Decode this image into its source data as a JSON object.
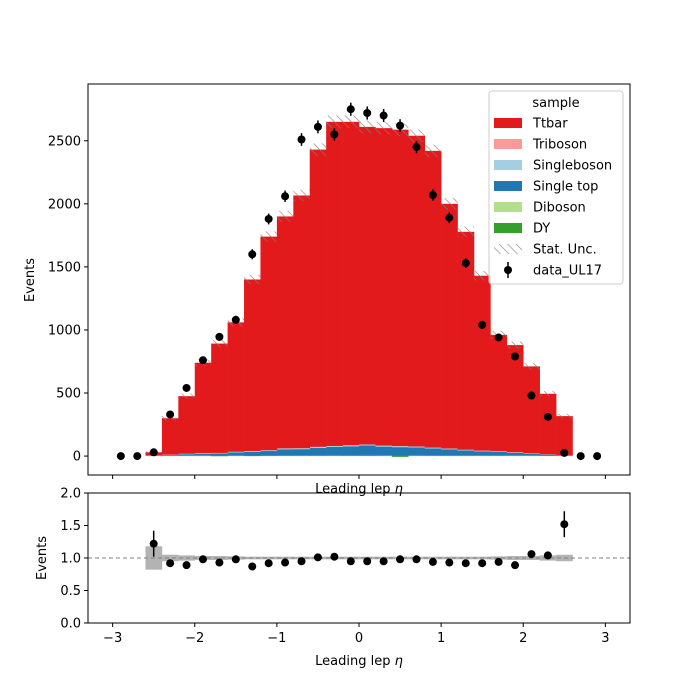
{
  "chart_data": [
    {
      "type": "bar",
      "stacked": true,
      "xlabel": "Leading lep $\\eta$",
      "ylabel": "Events",
      "xlim": [
        -3.3,
        3.3
      ],
      "ylim": [
        -150,
        2950
      ],
      "yticks": [
        0,
        500,
        1000,
        1500,
        2000,
        2500
      ],
      "xticks": [
        -3,
        -2,
        -1,
        0,
        1,
        2,
        3
      ],
      "bin_edges": [
        -2.6,
        -2.4,
        -2.2,
        -2.0,
        -1.8,
        -1.6,
        -1.4,
        -1.2,
        -1.0,
        -0.8,
        -0.6,
        -0.4,
        -0.2,
        0.0,
        0.2,
        0.4,
        0.6,
        0.8,
        1.0,
        1.2,
        1.4,
        1.6,
        1.8,
        2.0,
        2.2,
        2.4,
        2.6
      ],
      "legend": {
        "title": "sample",
        "placement": "top-right",
        "entries": [
          "Ttbar",
          "Triboson",
          "Singleboson",
          "Single top",
          "Diboson",
          "DY",
          "Stat. Unc.",
          "data_UL17"
        ]
      },
      "series": [
        {
          "name": "DY",
          "color": "#33a02c",
          "values": [
            2,
            3,
            4,
            3,
            -2,
            3,
            -1,
            1,
            5,
            2,
            4,
            6,
            5,
            8,
            6,
            -8,
            6,
            4,
            5,
            3,
            2,
            4,
            3,
            2,
            2,
            1
          ]
        },
        {
          "name": "Diboson",
          "color": "#b2df8a",
          "values": [
            0,
            1,
            1,
            1,
            1,
            1,
            1,
            1,
            1,
            1,
            1,
            1,
            1,
            1,
            1,
            1,
            1,
            1,
            1,
            1,
            1,
            1,
            1,
            1,
            0,
            0
          ]
        },
        {
          "name": "Single top",
          "color": "#1f78b4",
          "values": [
            3,
            5,
            10,
            15,
            20,
            25,
            32,
            38,
            48,
            52,
            60,
            65,
            72,
            75,
            68,
            70,
            62,
            55,
            48,
            40,
            35,
            30,
            22,
            15,
            10,
            5
          ]
        },
        {
          "name": "Singleboson",
          "color": "#a6cee3",
          "values": [
            1,
            2,
            3,
            4,
            4,
            5,
            6,
            6,
            7,
            7,
            8,
            8,
            8,
            8,
            8,
            8,
            7,
            7,
            6,
            6,
            5,
            4,
            4,
            3,
            2,
            1
          ]
        },
        {
          "name": "Triboson",
          "color": "#fb9a99",
          "values": [
            0,
            0,
            0,
            0,
            0,
            0,
            0,
            0,
            0,
            0,
            0,
            0,
            0,
            0,
            0,
            0,
            0,
            0,
            0,
            0,
            0,
            0,
            0,
            0,
            0,
            0
          ]
        },
        {
          "name": "Ttbar",
          "color": "#e31a1c",
          "values": [
            24,
            289,
            457,
            717,
            867,
            1026,
            1361,
            1694,
            1839,
            2004,
            2357,
            2570,
            2564,
            2518,
            2517,
            2509,
            2464,
            2353,
            1940,
            1728,
            1387,
            922,
            850,
            690,
            480,
            310
          ]
        }
      ],
      "stat_unc": [
        8,
        17,
        21,
        27,
        29,
        32,
        37,
        41,
        43,
        45,
        49,
        51,
        51,
        51,
        50,
        50,
        50,
        49,
        45,
        42,
        37,
        31,
        29,
        26,
        22,
        18
      ],
      "data": {
        "name": "data_UL17",
        "x": [
          -2.9,
          -2.7,
          -2.5,
          -2.3,
          -2.1,
          -1.9,
          -1.7,
          -1.5,
          -1.3,
          -1.1,
          -0.9,
          -0.7,
          -0.5,
          -0.3,
          -0.1,
          0.1,
          0.3,
          0.5,
          0.7,
          0.9,
          1.1,
          1.3,
          1.5,
          1.7,
          1.9,
          2.1,
          2.3,
          2.5,
          2.7,
          2.9
        ],
        "y": [
          0,
          0,
          30,
          330,
          540,
          760,
          945,
          1080,
          1600,
          1880,
          2060,
          2510,
          2610,
          2550,
          2750,
          2720,
          2700,
          2620,
          2450,
          2070,
          1890,
          1530,
          1040,
          940,
          790,
          480,
          310,
          25,
          0,
          0
        ],
        "err": [
          0,
          0,
          6,
          18,
          23,
          28,
          31,
          33,
          40,
          43,
          45,
          50,
          51,
          50,
          52,
          52,
          52,
          51,
          49,
          45,
          43,
          39,
          32,
          31,
          28,
          22,
          18,
          5,
          0,
          0
        ]
      }
    },
    {
      "type": "scatter",
      "xlabel": "Leading lep $\\eta$",
      "ylabel": "Events",
      "xlim": [
        -3.3,
        3.3
      ],
      "ylim": [
        0.0,
        2.0
      ],
      "yticks": [
        0.0,
        0.5,
        1.0,
        1.5,
        2.0
      ],
      "xticks": [
        -3,
        -2,
        -1,
        0,
        1,
        2,
        3
      ],
      "reference_line": 1.0,
      "unc_band": {
        "bin_edges": [
          -2.6,
          -2.4,
          -2.2,
          -2.0,
          -1.8,
          -1.6,
          -1.4,
          -1.2,
          -1.0,
          -0.8,
          -0.6,
          -0.4,
          -0.2,
          0.0,
          0.2,
          0.4,
          0.6,
          0.8,
          1.0,
          1.2,
          1.4,
          1.6,
          1.8,
          2.0,
          2.2,
          2.4,
          2.6
        ],
        "half_width": [
          0.18,
          0.05,
          0.04,
          0.03,
          0.03,
          0.025,
          0.02,
          0.02,
          0.02,
          0.02,
          0.02,
          0.02,
          0.02,
          0.02,
          0.02,
          0.02,
          0.02,
          0.02,
          0.02,
          0.02,
          0.02,
          0.025,
          0.03,
          0.03,
          0.04,
          0.05
        ]
      },
      "x": [
        -2.5,
        -2.3,
        -2.1,
        -1.9,
        -1.7,
        -1.5,
        -1.3,
        -1.1,
        -0.9,
        -0.7,
        -0.5,
        -0.3,
        -0.1,
        0.1,
        0.3,
        0.5,
        0.7,
        0.9,
        1.1,
        1.3,
        1.5,
        1.7,
        1.9,
        2.1,
        2.3,
        2.5
      ],
      "y": [
        1.22,
        0.92,
        0.89,
        0.98,
        0.93,
        0.98,
        0.87,
        0.92,
        0.93,
        0.95,
        1.01,
        1.02,
        0.95,
        0.95,
        0.95,
        0.98,
        0.98,
        0.94,
        0.93,
        0.92,
        0.92,
        0.94,
        0.89,
        1.06,
        1.04,
        1.52
      ],
      "err": [
        0.2,
        0.04,
        0.04,
        0.04,
        0.04,
        0.03,
        0.03,
        0.03,
        0.03,
        0.03,
        0.03,
        0.03,
        0.03,
        0.03,
        0.03,
        0.03,
        0.03,
        0.03,
        0.03,
        0.03,
        0.03,
        0.04,
        0.04,
        0.04,
        0.06,
        0.2
      ]
    }
  ]
}
